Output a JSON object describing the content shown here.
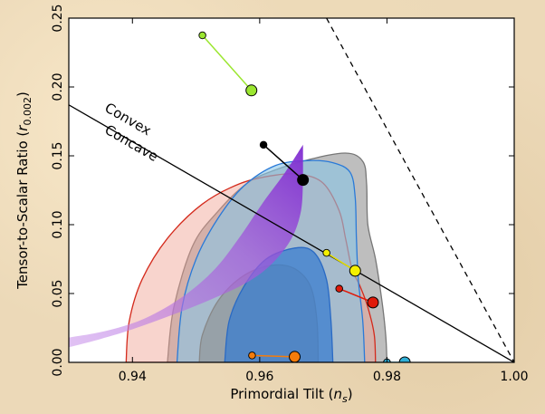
{
  "chart_data": {
    "type": "scatter",
    "xlabel": "Primordial Tilt (",
    "xlabel_symbol": "n",
    "xlabel_sub": "s",
    "xlabel_close": ")",
    "ylabel": "Tensor-to-Scalar Ratio (",
    "ylabel_symbol": "r",
    "ylabel_sub": "0.002",
    "ylabel_close": ")",
    "xlim": [
      0.93,
      1.0
    ],
    "ylim": [
      0.0,
      0.25
    ],
    "x_ticks": [
      {
        "value": 0.94,
        "label": "0.94"
      },
      {
        "value": 0.96,
        "label": "0.96"
      },
      {
        "value": 0.98,
        "label": "0.98"
      },
      {
        "value": 1.0,
        "label": "1.00"
      }
    ],
    "y_ticks": [
      {
        "value": 0.0,
        "label": "0.00"
      },
      {
        "value": 0.05,
        "label": "0.05"
      },
      {
        "value": 0.1,
        "label": "0.10"
      },
      {
        "value": 0.15,
        "label": "0.15"
      },
      {
        "value": 0.2,
        "label": "0.20"
      },
      {
        "value": 0.25,
        "label": "0.25"
      }
    ],
    "grid": false,
    "annotations": [
      {
        "text": "Convex",
        "x": 0.9355,
        "y": 0.183
      },
      {
        "text": "Concave",
        "x": 0.9355,
        "y": 0.167
      }
    ],
    "reference_lines": [
      {
        "name": "convex-concave-boundary",
        "style": "solid",
        "color": "#000000",
        "x": [
          0.93,
          1.0
        ],
        "y": [
          0.187,
          0.0
        ]
      },
      {
        "name": "dashed-boundary",
        "style": "dashed",
        "color": "#000000",
        "x": [
          0.9705,
          1.0
        ],
        "y": [
          0.25,
          0.0
        ]
      }
    ],
    "contours": [
      {
        "name": "grey-outer",
        "fill": "#a8a8a8",
        "opacity": 0.75,
        "stroke": "#777777",
        "points": [
          [
            0.9455,
            0
          ],
          [
            0.9465,
            0.04
          ],
          [
            0.9495,
            0.085
          ],
          [
            0.9535,
            0.11
          ],
          [
            0.958,
            0.13
          ],
          [
            0.962,
            0.139
          ],
          [
            0.9675,
            0.147
          ],
          [
            0.9735,
            0.152
          ],
          [
            0.9762,
            0.146
          ],
          [
            0.9768,
            0.13
          ],
          [
            0.977,
            0.1
          ],
          [
            0.9782,
            0.075
          ],
          [
            0.9792,
            0.045
          ],
          [
            0.9798,
            0.02
          ],
          [
            0.98,
            0
          ]
        ]
      },
      {
        "name": "red-outer",
        "fill": "#f0a090",
        "opacity": 0.45,
        "stroke": "#d42a1c",
        "points": [
          [
            0.939,
            0
          ],
          [
            0.9395,
            0.03
          ],
          [
            0.9415,
            0.06
          ],
          [
            0.9455,
            0.09
          ],
          [
            0.951,
            0.115
          ],
          [
            0.957,
            0.13
          ],
          [
            0.9625,
            0.136
          ],
          [
            0.9665,
            0.1365
          ],
          [
            0.97,
            0.13
          ],
          [
            0.9725,
            0.11
          ],
          [
            0.9735,
            0.09
          ],
          [
            0.9745,
            0.068
          ],
          [
            0.9758,
            0.055
          ],
          [
            0.977,
            0.04
          ],
          [
            0.978,
            0.02
          ],
          [
            0.9782,
            0
          ]
        ]
      },
      {
        "name": "blue-outer",
        "fill": "#88c4e6",
        "opacity": 0.6,
        "stroke": "#2a7ad8",
        "points": [
          [
            0.947,
            0
          ],
          [
            0.9478,
            0.04
          ],
          [
            0.95,
            0.075
          ],
          [
            0.9535,
            0.105
          ],
          [
            0.9575,
            0.128
          ],
          [
            0.9625,
            0.143
          ],
          [
            0.9675,
            0.1465
          ],
          [
            0.9715,
            0.145
          ],
          [
            0.9742,
            0.138
          ],
          [
            0.975,
            0.12
          ],
          [
            0.9752,
            0.09
          ],
          [
            0.9755,
            0.06
          ],
          [
            0.9762,
            0.03
          ],
          [
            0.9765,
            0
          ]
        ]
      },
      {
        "name": "grey-inner",
        "fill": "#8a8a8a",
        "opacity": 0.55,
        "stroke": "#888888",
        "points": [
          [
            0.9505,
            0
          ],
          [
            0.951,
            0.02
          ],
          [
            0.9535,
            0.045
          ],
          [
            0.9575,
            0.063
          ],
          [
            0.962,
            0.0705
          ],
          [
            0.9655,
            0.068
          ],
          [
            0.968,
            0.055
          ],
          [
            0.969,
            0.03
          ],
          [
            0.9692,
            0
          ]
        ]
      },
      {
        "name": "blue-inner",
        "fill": "#3a7ecf",
        "opacity": 0.75,
        "stroke": "#2a6ac4",
        "points": [
          [
            0.9545,
            0
          ],
          [
            0.9552,
            0.03
          ],
          [
            0.9575,
            0.055
          ],
          [
            0.961,
            0.075
          ],
          [
            0.9655,
            0.083
          ],
          [
            0.9685,
            0.08
          ],
          [
            0.9705,
            0.06
          ],
          [
            0.9712,
            0.03
          ],
          [
            0.9715,
            0
          ]
        ]
      }
    ],
    "purple_band": {
      "fill": "#a050d8",
      "upper": [
        [
          0.93,
          0.018
        ],
        [
          0.936,
          0.023
        ],
        [
          0.942,
          0.032
        ],
        [
          0.948,
          0.048
        ],
        [
          0.953,
          0.068
        ],
        [
          0.957,
          0.092
        ],
        [
          0.9605,
          0.116
        ],
        [
          0.964,
          0.138
        ],
        [
          0.9668,
          0.158
        ]
      ],
      "lower": [
        [
          0.9668,
          0.133
        ],
        [
          0.9665,
          0.11
        ],
        [
          0.965,
          0.09
        ],
        [
          0.962,
          0.072
        ],
        [
          0.958,
          0.058
        ],
        [
          0.952,
          0.045
        ],
        [
          0.946,
          0.034
        ],
        [
          0.94,
          0.024
        ],
        [
          0.935,
          0.017
        ],
        [
          0.93,
          0.011
        ]
      ]
    },
    "series": [
      {
        "color": "#9be630",
        "line": "#9be630",
        "points": [
          [
            0.951,
            0.2375
          ],
          [
            0.9587,
            0.1975
          ]
        ]
      },
      {
        "color": "#000000",
        "line": "#000000",
        "points": [
          [
            0.9606,
            0.158
          ],
          [
            0.9668,
            0.1325
          ]
        ]
      },
      {
        "color": "#f5f000",
        "line": "#e6e000",
        "points": [
          [
            0.9705,
            0.0795
          ],
          [
            0.975,
            0.0665
          ]
        ]
      },
      {
        "color": "#e01a0a",
        "line": "#e01a0a",
        "points": [
          [
            0.9725,
            0.0535
          ],
          [
            0.9778,
            0.0435
          ]
        ]
      },
      {
        "color": "#f57c0a",
        "line": "#f57c0a",
        "points": [
          [
            0.9588,
            0.005
          ],
          [
            0.9655,
            0.004
          ]
        ]
      },
      {
        "color": "#30b0d8",
        "line": "#30b0d8",
        "points": [
          [
            0.98,
            0.0
          ],
          [
            0.9828,
            0.0
          ]
        ]
      }
    ]
  }
}
